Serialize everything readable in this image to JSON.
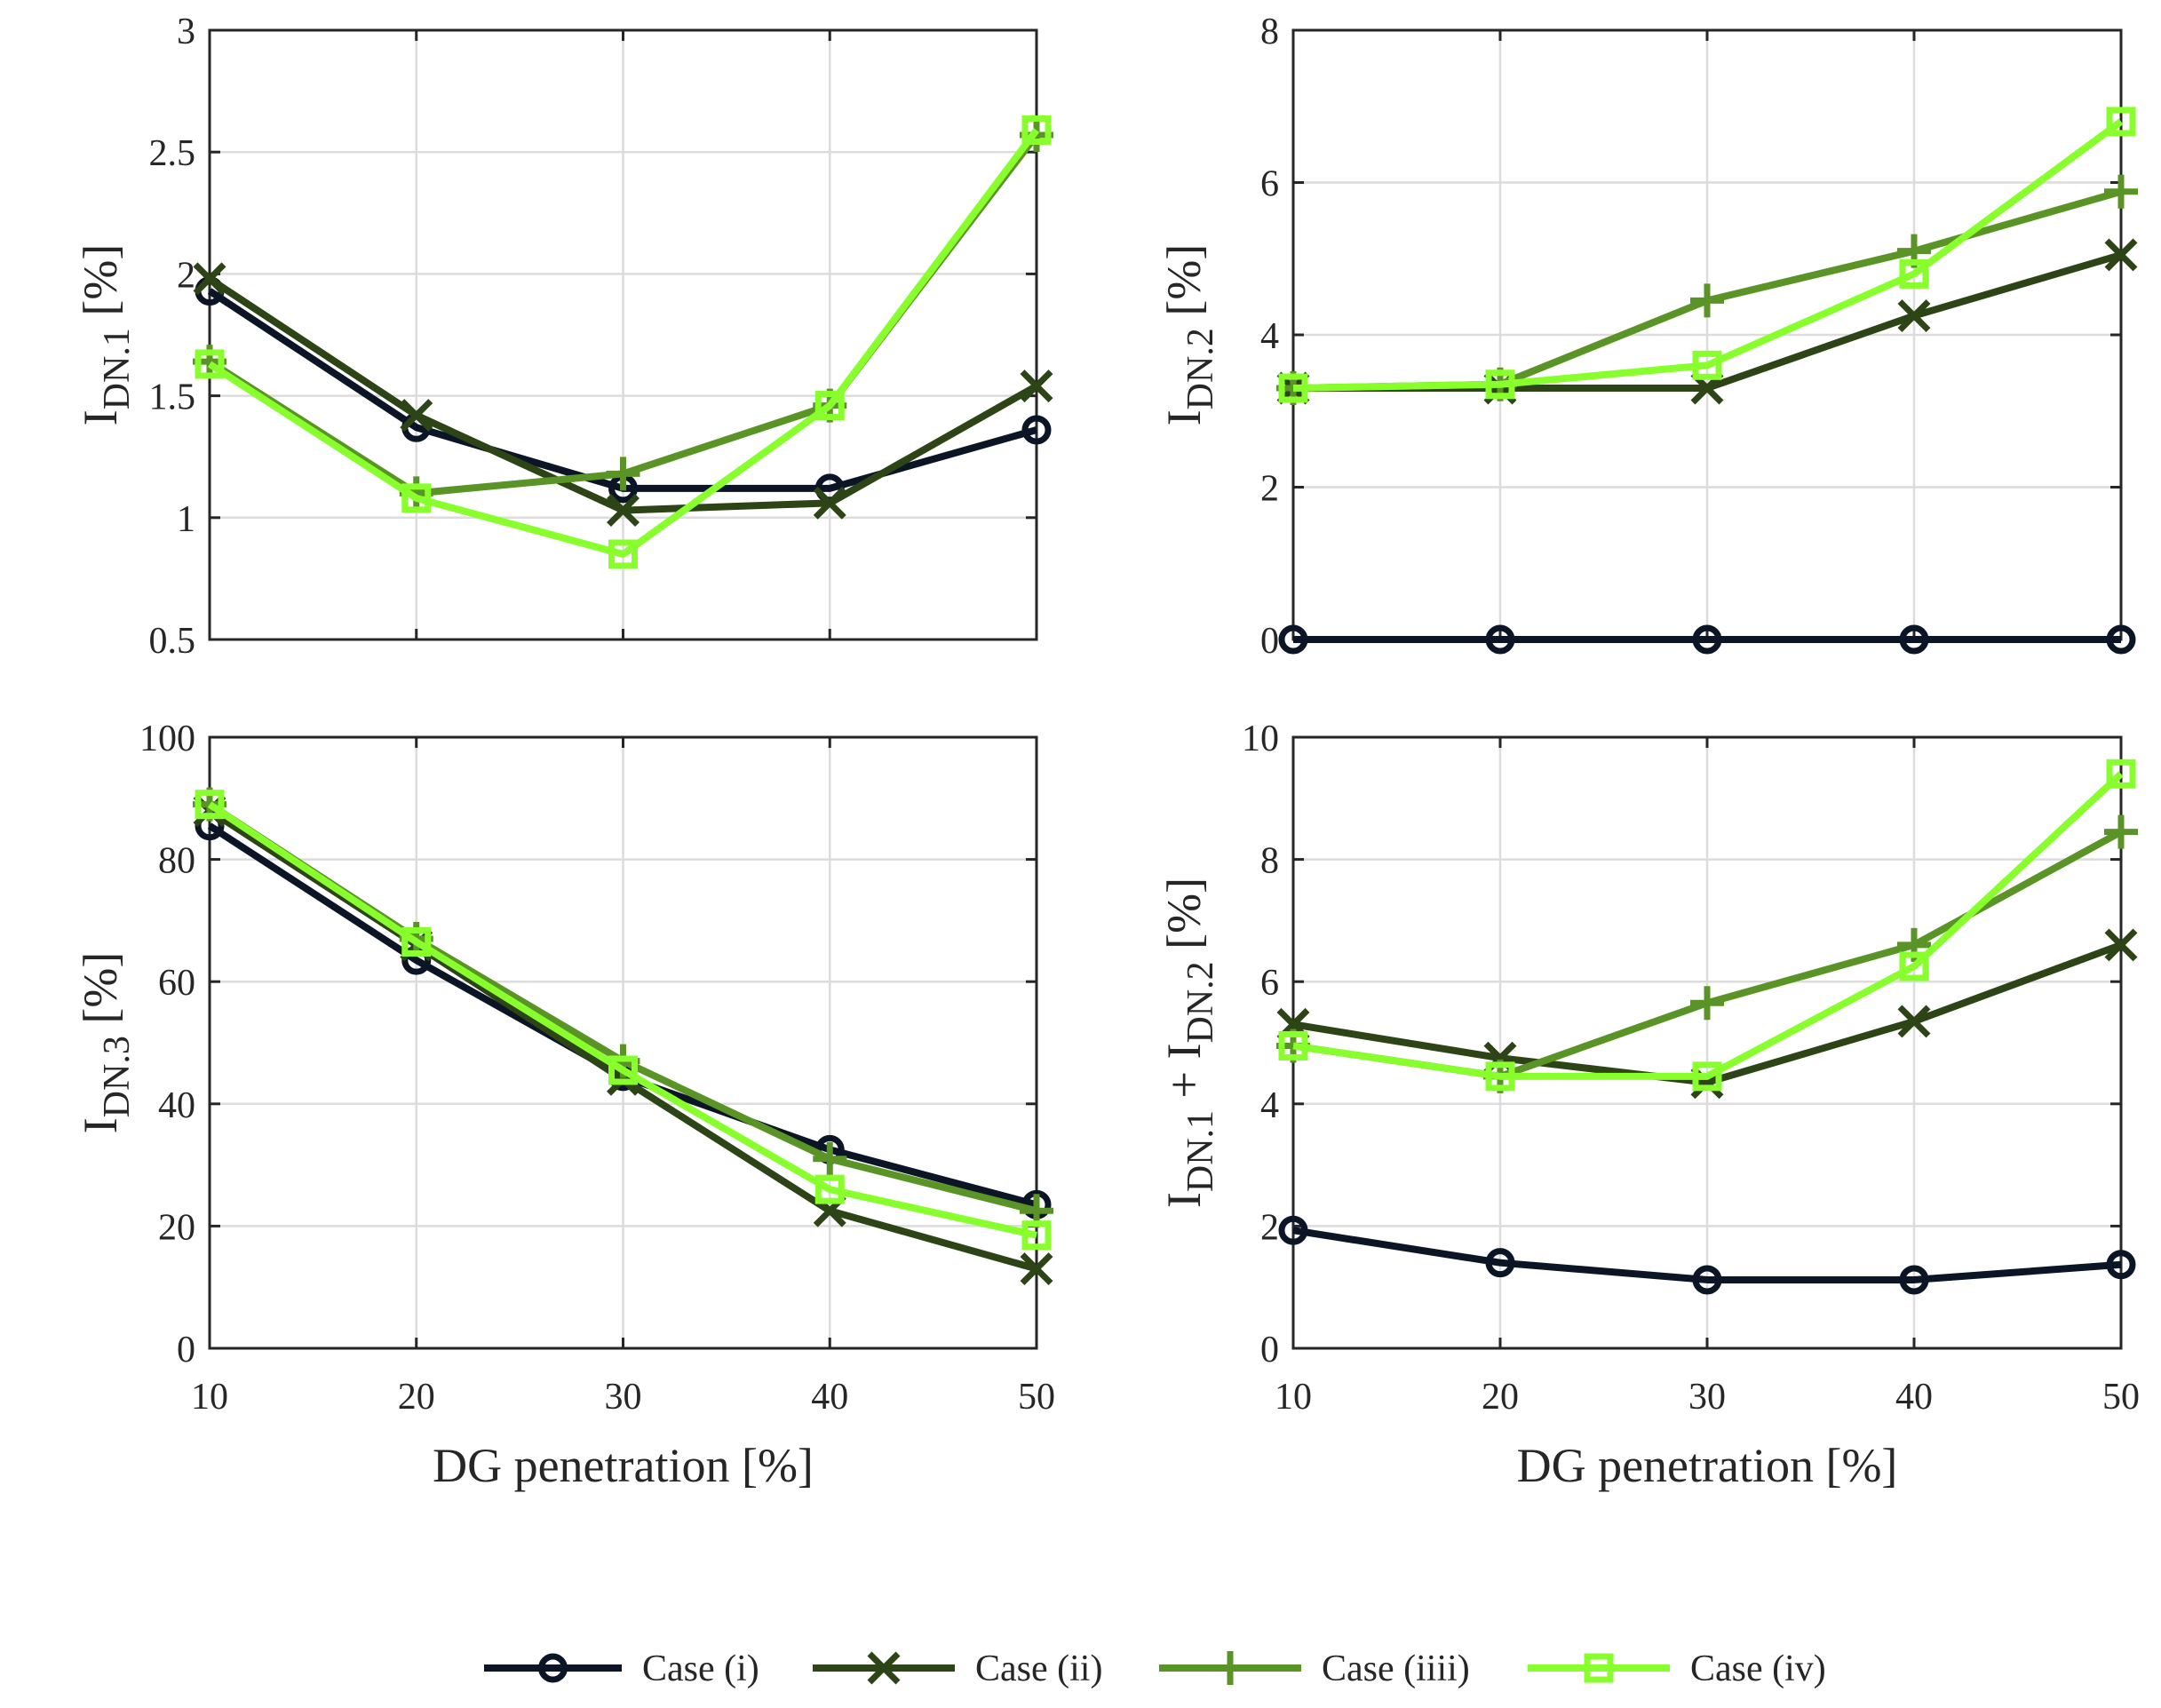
{
  "chart_data": {
    "type": "line",
    "layout": "2x2 grid",
    "series_defs": [
      {
        "name": "Case (i)",
        "color": "#0b1526",
        "marker": "circle"
      },
      {
        "name": "Case (ii)",
        "color": "#2d4416",
        "marker": "x"
      },
      {
        "name": "Case (iiii)",
        "color": "#5a9426",
        "marker": "plus"
      },
      {
        "name": "Case (iv)",
        "color": "#88ff2c",
        "marker": "square"
      }
    ],
    "shared_xlabel": "DG penetration [%]",
    "charts": [
      {
        "id": "dn1",
        "ylabel_main": "I",
        "ylabel_sub": "DN.1",
        "ylabel_unit": "[%]",
        "x": [
          10,
          20,
          30,
          40,
          50
        ],
        "xlim": [
          10,
          50
        ],
        "xticks": [
          "10",
          "20",
          "30",
          "40",
          "50"
        ],
        "ylim": [
          0.5,
          3
        ],
        "yticks": [
          "0.5",
          "1",
          "1.5",
          "2",
          "2.5",
          "3"
        ],
        "show_xticks": false,
        "series": [
          {
            "name": "Case (i)",
            "values": [
              1.93,
              1.37,
              1.12,
              1.12,
              1.36
            ]
          },
          {
            "name": "Case (ii)",
            "values": [
              1.98,
              1.42,
              1.03,
              1.06,
              1.54
            ]
          },
          {
            "name": "Case (iiii)",
            "values": [
              1.64,
              1.1,
              1.18,
              1.46,
              2.57
            ]
          },
          {
            "name": "Case (iv)",
            "values": [
              1.63,
              1.08,
              0.85,
              1.46,
              2.59
            ]
          }
        ]
      },
      {
        "id": "dn2",
        "ylabel_main": "I",
        "ylabel_sub": "DN.2",
        "ylabel_unit": "[%]",
        "x": [
          10,
          20,
          30,
          40,
          50
        ],
        "xlim": [
          10,
          50
        ],
        "xticks": [
          "10",
          "20",
          "30",
          "40",
          "50"
        ],
        "ylim": [
          0,
          8
        ],
        "yticks": [
          "0",
          "2",
          "4",
          "6",
          "8"
        ],
        "show_xticks": false,
        "series": [
          {
            "name": "Case (i)",
            "values": [
              0,
              0,
              0,
              0,
              0
            ]
          },
          {
            "name": "Case (ii)",
            "values": [
              3.3,
              3.3,
              3.3,
              4.25,
              5.05
            ]
          },
          {
            "name": "Case (iiii)",
            "values": [
              3.3,
              3.35,
              4.45,
              5.1,
              5.88
            ]
          },
          {
            "name": "Case (iv)",
            "values": [
              3.3,
              3.35,
              3.6,
              4.8,
              6.8
            ]
          }
        ]
      },
      {
        "id": "dn3",
        "ylabel_main": "I",
        "ylabel_sub": "DN.3",
        "ylabel_unit": "[%]",
        "x": [
          10,
          20,
          30,
          40,
          50
        ],
        "xlim": [
          10,
          50
        ],
        "xticks": [
          "10",
          "20",
          "30",
          "40",
          "50"
        ],
        "ylim": [
          0,
          100
        ],
        "yticks": [
          "0",
          "20",
          "40",
          "60",
          "80",
          "100"
        ],
        "show_xticks": true,
        "xlabel": "DG penetration [%]",
        "series": [
          {
            "name": "Case (i)",
            "values": [
              85.5,
              63.5,
              44.5,
              32.5,
              23.5
            ]
          },
          {
            "name": "Case (ii)",
            "values": [
              88,
              66,
              44,
              22.5,
              13
            ]
          },
          {
            "name": "Case (iiii)",
            "values": [
              89,
              67,
              47,
              31,
              22.5
            ]
          },
          {
            "name": "Case (iv)",
            "values": [
              89,
              66.5,
              45.5,
              26,
              18.5
            ]
          }
        ]
      },
      {
        "id": "dn12",
        "ylabel_main": "I",
        "ylabel_sub": "DN.1",
        "ylabel_main2": " + I",
        "ylabel_sub2": "DN.2",
        "ylabel_unit": "[%]",
        "x": [
          10,
          20,
          30,
          40,
          50
        ],
        "xlim": [
          10,
          50
        ],
        "xticks": [
          "10",
          "20",
          "30",
          "40",
          "50"
        ],
        "ylim": [
          0,
          10
        ],
        "yticks": [
          "0",
          "2",
          "4",
          "6",
          "8",
          "10"
        ],
        "show_xticks": true,
        "xlabel": "DG penetration [%]",
        "series": [
          {
            "name": "Case (i)",
            "values": [
              1.93,
              1.4,
              1.12,
              1.12,
              1.37
            ]
          },
          {
            "name": "Case (ii)",
            "values": [
              5.3,
              4.75,
              4.35,
              5.35,
              6.6
            ]
          },
          {
            "name": "Case (iiii)",
            "values": [
              4.95,
              4.45,
              5.65,
              6.6,
              8.45
            ]
          },
          {
            "name": "Case (iv)",
            "values": [
              4.95,
              4.45,
              4.45,
              6.25,
              9.4
            ]
          }
        ]
      }
    ],
    "legend": {
      "placement": "bottom-center",
      "entries": [
        "Case (i)",
        "Case (ii)",
        "Case (iiii)",
        "Case (iv)"
      ]
    }
  }
}
